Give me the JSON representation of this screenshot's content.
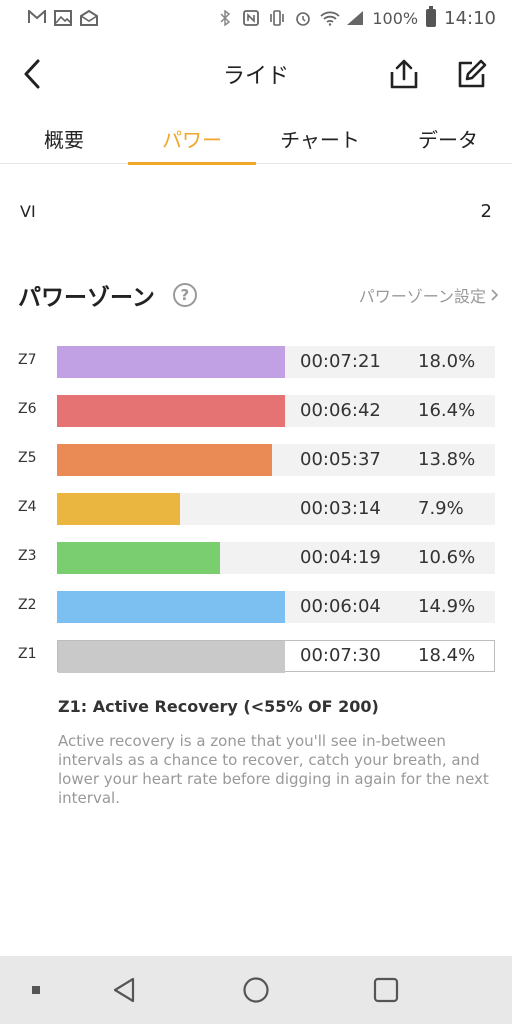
{
  "status_bar": {
    "battery": "100%",
    "time": "14:10"
  },
  "header": {
    "title": "ライド",
    "back_icon": "chevron-left-icon",
    "share_icon": "share-icon",
    "edit_icon": "edit-icon"
  },
  "tabs": [
    {
      "label": "概要",
      "active": false
    },
    {
      "label": "パワー",
      "active": true
    },
    {
      "label": "チャート",
      "active": false
    },
    {
      "label": "データ",
      "active": false
    }
  ],
  "vi": {
    "label": "VI",
    "value": "2"
  },
  "power_zones": {
    "title": "パワーゾーン",
    "settings_link": "パワーゾーン設定",
    "zones": [
      {
        "zone": "Z7",
        "time": "00:07:21",
        "percent": "18.0%",
        "fill": 0.52,
        "color": "#c1a1e3"
      },
      {
        "zone": "Z6",
        "time": "00:06:42",
        "percent": "16.4%",
        "fill": 0.52,
        "color": "#e57373"
      },
      {
        "zone": "Z5",
        "time": "00:05:37",
        "percent": "13.8%",
        "fill": 0.49,
        "color": "#ea8a55"
      },
      {
        "zone": "Z4",
        "time": "00:03:14",
        "percent": "7.9%",
        "fill": 0.28,
        "color": "#ebb63f"
      },
      {
        "zone": "Z3",
        "time": "00:04:19",
        "percent": "10.6%",
        "fill": 0.373,
        "color": "#7ace70"
      },
      {
        "zone": "Z2",
        "time": "00:06:04",
        "percent": "14.9%",
        "fill": 0.52,
        "color": "#7cc0f2"
      },
      {
        "zone": "Z1",
        "time": "00:07:30",
        "percent": "18.4%",
        "fill": 0.52,
        "color": "#c9c9c9"
      }
    ]
  },
  "description": {
    "title": "Z1: Active Recovery (<55% OF 200)",
    "text": "Active recovery is a zone that you'll see in-between intervals as a chance to recover, catch your breath, and lower your heart rate before digging in again for the next interval."
  }
}
